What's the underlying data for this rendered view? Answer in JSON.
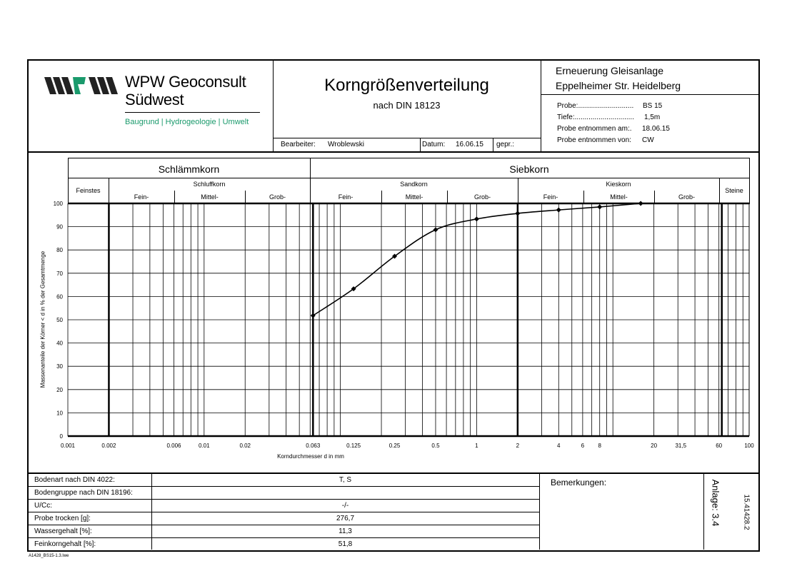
{
  "header": {
    "company_line1": "WPW Geoconsult",
    "company_line2": "Südwest",
    "tagline": "Baugrund | Hydrogeologie | Umwelt",
    "brand_green": "#1a9a6c",
    "title": "Korngrößenverteilung",
    "subtitle": "nach DIN 18123",
    "bearbeiter_label": "Bearbeiter:",
    "bearbeiter_value": "Wroblewski",
    "datum_label": "Datum:",
    "datum_value": "16.06.15",
    "gepr_label": "gepr.:",
    "project_line1": "Erneuerung Gleisanlage",
    "project_line2": "Eppelheimer Str. Heidelberg",
    "probe_label": "Probe:............................",
    "probe_value": "BS 15",
    "tiefe_label": "Tiefe:..............................",
    "tiefe_value": "1,5m",
    "entnommen_am_label": "Probe entnommen am:.",
    "entnommen_am_value": "18.06.15",
    "entnommen_von_label": "Probe entnommen von:",
    "entnommen_von_value": "CW"
  },
  "classification": {
    "schlaemmkorn": "Schlämmkorn",
    "siebkorn": "Siebkorn",
    "feinstes": "Feinstes",
    "schluffkorn": "Schluffkorn",
    "sandkorn": "Sandkorn",
    "kieskorn": "Kieskorn",
    "steine": "Steine",
    "fein": "Fein-",
    "mittel": "Mittel-",
    "grob": "Grob-"
  },
  "chart_data": {
    "type": "line",
    "xscale": "log",
    "xlim": [
      0.001,
      100
    ],
    "ylim": [
      0,
      100
    ],
    "xlabel": "Korndurchmesser d in mm",
    "ylabel": "Massenanteile der Körner < d in % der Gesamtmenge",
    "x_tick_labels": [
      "0.001",
      "0.002",
      "0.006",
      "0.01",
      "0.02",
      "0.063",
      "0.125",
      "0.25",
      "0.5",
      "1",
      "2",
      "4",
      "6",
      "8",
      "20",
      "31,5",
      "60",
      "100"
    ],
    "y_tick_labels": [
      "0",
      "10",
      "20",
      "30",
      "40",
      "50",
      "60",
      "70",
      "80",
      "90",
      "100"
    ],
    "grid": true,
    "series": [
      {
        "x": [
          0.063,
          0.125,
          0.25,
          0.5,
          1,
          2,
          4,
          8,
          16
        ],
        "y": [
          51.8,
          63.3,
          77.3,
          88.7,
          93.3,
          95.7,
          97.2,
          98.5,
          100
        ]
      }
    ]
  },
  "table": {
    "rows": [
      {
        "label": "Bodenart nach DIN 4022:",
        "value": "T, S"
      },
      {
        "label": "Bodengruppe nach DIN 18196:",
        "value": ""
      },
      {
        "label": "U/Cc:",
        "value": "-/-"
      },
      {
        "label": "Probe trocken [g]:",
        "value": "276,7"
      },
      {
        "label": "Wassergehalt [%]:",
        "value": "11,3"
      },
      {
        "label": "Feinkorngehalt [%]:",
        "value": "51,8"
      }
    ],
    "remarks_label": "Bemerkungen:",
    "anlage": "Anlage: 3.4",
    "project_number": "15.41428.2"
  },
  "footer": {
    "file": "A1428_BS15-1.3.lwe"
  }
}
